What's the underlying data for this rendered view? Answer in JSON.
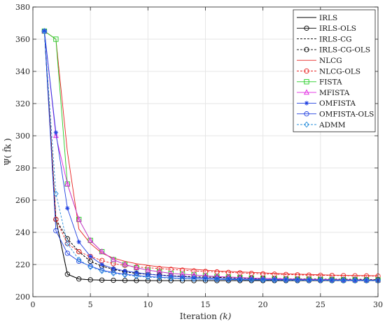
{
  "chart_data": {
    "type": "line",
    "xlabel": "Iteration",
    "xlabel_var": "(k)",
    "ylabel": "Ψ( f̂k )",
    "xlim": [
      0,
      30
    ],
    "ylim": [
      200,
      380
    ],
    "xticks": [
      0,
      5,
      10,
      15,
      20,
      25,
      30
    ],
    "yticks": [
      200,
      220,
      240,
      260,
      280,
      300,
      320,
      340,
      360,
      380
    ],
    "grid": true,
    "legend_position": "top-right",
    "x": [
      1,
      2,
      3,
      4,
      5,
      6,
      7,
      8,
      9,
      10,
      11,
      12,
      13,
      14,
      15,
      16,
      17,
      18,
      19,
      20,
      21,
      22,
      23,
      24,
      25,
      26,
      27,
      28,
      29,
      30
    ],
    "series": [
      {
        "name": "IRLS",
        "color": "#000000",
        "dash": "solid",
        "marker": "none",
        "values": [
          365,
          248,
          214,
          211,
          210.5,
          210.3,
          210.2,
          210.1,
          210.05,
          210,
          210,
          210,
          210,
          210,
          210,
          210,
          210,
          210,
          210,
          210,
          210,
          210,
          210,
          210,
          210,
          210,
          210,
          210,
          210,
          210
        ]
      },
      {
        "name": "IRLS-OLS",
        "color": "#000000",
        "dash": "solid",
        "marker": "circle",
        "values": [
          365,
          248,
          214,
          211,
          210.5,
          210.3,
          210.2,
          210.1,
          210.05,
          210,
          210,
          210,
          210,
          210,
          210,
          210,
          210,
          210,
          210,
          210,
          210,
          210,
          210,
          210,
          210,
          210,
          210,
          210,
          210,
          210
        ]
      },
      {
        "name": "IRLS-CG",
        "color": "#000000",
        "dash": "dashed",
        "marker": "none",
        "values": [
          365,
          248,
          236,
          228,
          222,
          219,
          217,
          215.5,
          214.5,
          214,
          213.5,
          213,
          212.7,
          212.4,
          212.2,
          212,
          211.8,
          211.6,
          211.4,
          211.3,
          211.2,
          211.1,
          211,
          211,
          210.9,
          210.9,
          210.8,
          210.8,
          210.7,
          210.7
        ]
      },
      {
        "name": "IRLS-CG-OLS",
        "color": "#000000",
        "dash": "dashed",
        "marker": "circle",
        "values": [
          365,
          248,
          236,
          228,
          222,
          219,
          217,
          215.5,
          214.5,
          214,
          213.5,
          213,
          212.7,
          212.4,
          212.2,
          212,
          211.8,
          211.6,
          211.4,
          211.3,
          211.2,
          211.1,
          211,
          211,
          210.9,
          210.9,
          210.8,
          210.8,
          210.7,
          210.7
        ]
      },
      {
        "name": "NLCG",
        "color": "#e8201f",
        "dash": "solid",
        "marker": "none",
        "values": [
          365,
          360,
          290,
          242,
          233,
          227,
          224,
          222,
          220.5,
          219.5,
          218.5,
          218,
          217.5,
          217,
          216.5,
          216,
          215.7,
          215.4,
          215.1,
          214.8,
          214.5,
          214.2,
          214,
          213.8,
          213.6,
          213.4,
          213.3,
          213.2,
          213.1,
          213
        ]
      },
      {
        "name": "NLCG-OLS",
        "color": "#e8201f",
        "dash": "dashed",
        "marker": "circle",
        "values": [
          365,
          248,
          233,
          228,
          225,
          222.5,
          220.5,
          219.5,
          218.5,
          218,
          217.5,
          217,
          216.5,
          216,
          215.7,
          215.4,
          215.1,
          214.8,
          214.5,
          214.2,
          214,
          213.8,
          213.6,
          213.4,
          213.3,
          213.2,
          213.1,
          213,
          212.9,
          212.8
        ]
      },
      {
        "name": "FISTA",
        "color": "#22cc22",
        "dash": "solid",
        "marker": "square",
        "values": [
          365,
          360,
          270,
          248,
          235,
          228,
          223,
          220,
          218,
          216.5,
          215.5,
          214.5,
          214,
          213.5,
          213,
          212.5,
          212.2,
          211.9,
          211.6,
          211.4,
          211.2,
          211,
          210.9,
          210.8,
          210.7,
          210.6,
          210.5,
          210.5,
          210.4,
          210.4
        ]
      },
      {
        "name": "MFISTA",
        "color": "#e020e0",
        "dash": "solid",
        "marker": "triangle",
        "values": [
          365,
          300,
          270,
          248,
          235,
          228,
          223,
          220,
          218,
          216.5,
          215.5,
          214.5,
          214,
          213.5,
          213,
          212.5,
          212.2,
          211.9,
          211.6,
          211.4,
          211.2,
          211,
          210.9,
          210.8,
          210.7,
          210.6,
          210.5,
          210.5,
          210.4,
          210.4
        ]
      },
      {
        "name": "OMFISTA",
        "color": "#2040e0",
        "dash": "solid",
        "marker": "star",
        "values": [
          365,
          302,
          255,
          234,
          225,
          220,
          217.5,
          216,
          215,
          214,
          213.3,
          212.8,
          212.4,
          212,
          211.7,
          211.4,
          211.2,
          211,
          210.9,
          210.8,
          210.7,
          210.6,
          210.5,
          210.5,
          210.4,
          210.4,
          210.3,
          210.3,
          210.3,
          210.2
        ]
      },
      {
        "name": "OMFISTA-OLS",
        "color": "#2040e0",
        "dash": "solid",
        "marker": "circle",
        "values": [
          365,
          241,
          227,
          222,
          219,
          216.5,
          215,
          214,
          213.2,
          212.6,
          212.1,
          211.7,
          211.4,
          211.2,
          211,
          210.8,
          210.7,
          210.6,
          210.5,
          210.4,
          210.4,
          210.3,
          210.3,
          210.2,
          210.2,
          210.2,
          210.1,
          210.1,
          210.1,
          210.1
        ]
      },
      {
        "name": "ADMM",
        "color": "#2a8fdc",
        "dash": "dashed",
        "marker": "diamond",
        "values": [
          365,
          264,
          233,
          223,
          218.5,
          216,
          214.5,
          213.5,
          212.8,
          212.2,
          211.8,
          211.5,
          211.2,
          211,
          210.8,
          210.7,
          210.6,
          210.5,
          210.4,
          210.4,
          210.3,
          210.3,
          210.2,
          210.2,
          210.2,
          210.1,
          210.1,
          210.1,
          210.1,
          210.1
        ]
      }
    ]
  }
}
